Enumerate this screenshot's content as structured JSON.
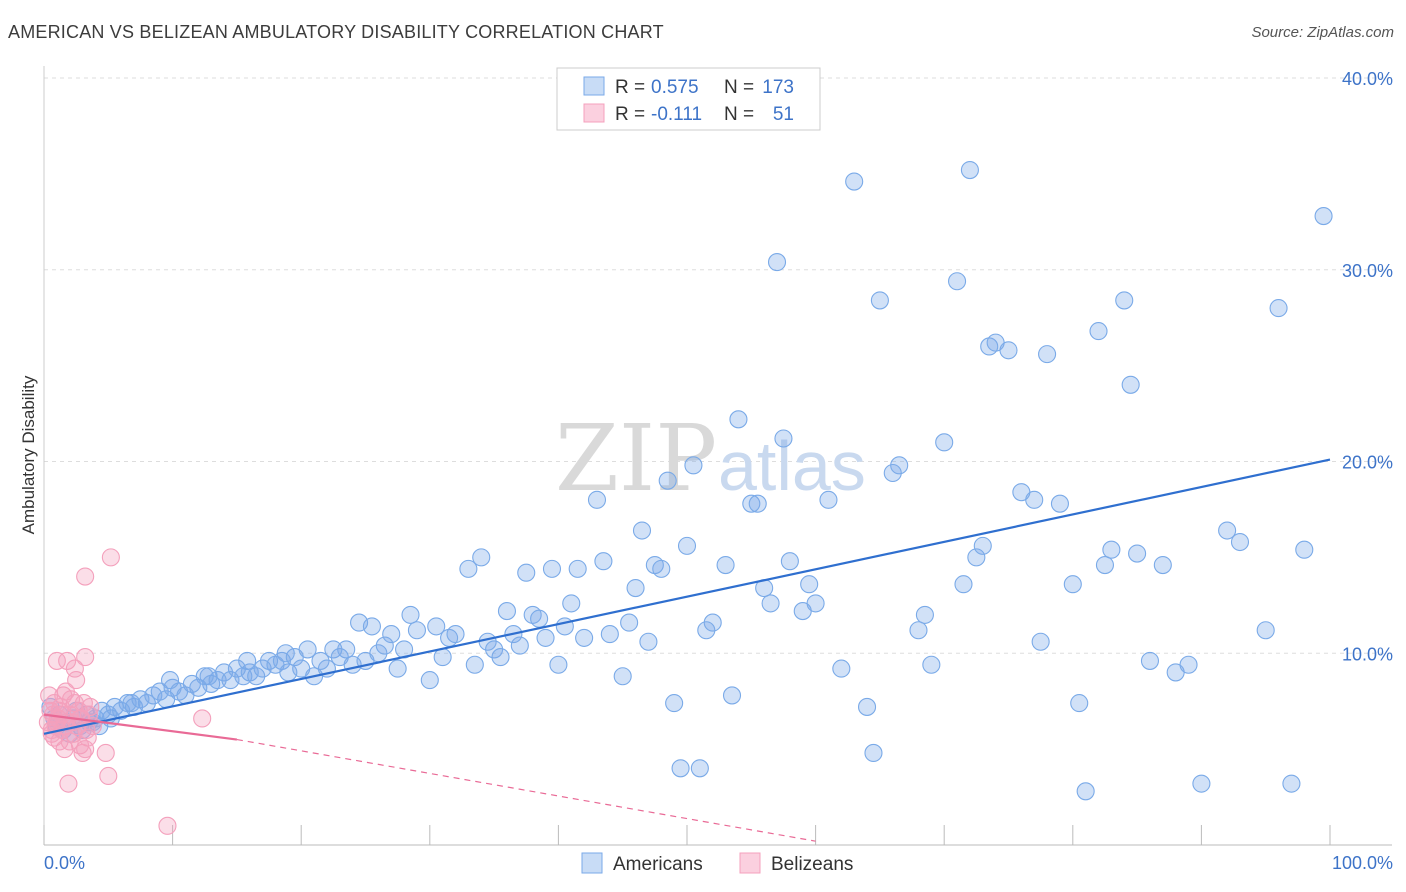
{
  "header": {
    "title": "AMERICAN VS BELIZEAN AMBULATORY DISABILITY CORRELATION CHART",
    "source": "Source: ZipAtlas.com"
  },
  "watermark": {
    "zip": "ZIP",
    "atlas": "atlas"
  },
  "legend_top": [
    {
      "r_label": "R =",
      "r_value": "0.575",
      "n_label": "N =",
      "n_value": "173",
      "color": "#7aaae8"
    },
    {
      "r_label": "R =",
      "r_value": "-0.111",
      "n_label": "N =",
      "n_value": "51",
      "color": "#f4a0bc"
    }
  ],
  "legend_bottom": [
    {
      "label": "Americans",
      "color": "#7aaae8"
    },
    {
      "label": "Belizeans",
      "color": "#f4a0bc"
    }
  ],
  "chart_data": {
    "type": "scatter",
    "title": "AMERICAN VS BELIZEAN AMBULATORY DISABILITY CORRELATION CHART",
    "xlabel": "",
    "ylabel": "Ambulatory Disability",
    "xlim": [
      0,
      100
    ],
    "ylim": [
      0,
      40
    ],
    "x_tick_labels": [
      "0.0%",
      "100.0%"
    ],
    "y_ticks": [
      10,
      20,
      30,
      40
    ],
    "y_tick_labels": [
      "10.0%",
      "20.0%",
      "30.0%",
      "40.0%"
    ],
    "grid": true,
    "legend": "top-center",
    "series": [
      {
        "name": "Americans",
        "color": "#7aaae8",
        "line_color": "#2f6fcf",
        "trend": {
          "x": [
            0,
            100
          ],
          "y": [
            5.8,
            20.1
          ],
          "style": "solid"
        },
        "points": [
          [
            0.5,
            7.2
          ],
          [
            0.8,
            6.6
          ],
          [
            1,
            6.2
          ],
          [
            1.2,
            6.8
          ],
          [
            1.5,
            6.0
          ],
          [
            1.8,
            6.4
          ],
          [
            2,
            5.8
          ],
          [
            2.3,
            6.6
          ],
          [
            2.5,
            7.0
          ],
          [
            2.8,
            6.2
          ],
          [
            3,
            6.0
          ],
          [
            3.3,
            6.8
          ],
          [
            3.5,
            6.4
          ],
          [
            4,
            6.6
          ],
          [
            4.3,
            6.2
          ],
          [
            4.5,
            7.0
          ],
          [
            5,
            6.8
          ],
          [
            5.5,
            7.2
          ],
          [
            6,
            7.0
          ],
          [
            6.5,
            7.4
          ],
          [
            7,
            7.2
          ],
          [
            7.5,
            7.6
          ],
          [
            8,
            7.4
          ],
          [
            8.5,
            7.8
          ],
          [
            9,
            8.0
          ],
          [
            9.5,
            7.6
          ],
          [
            10,
            8.2
          ],
          [
            10.5,
            8.0
          ],
          [
            11,
            7.8
          ],
          [
            11.5,
            8.4
          ],
          [
            12,
            8.2
          ],
          [
            12.5,
            8.8
          ],
          [
            13,
            8.4
          ],
          [
            13.5,
            8.6
          ],
          [
            14,
            9.0
          ],
          [
            14.5,
            8.6
          ],
          [
            15,
            9.2
          ],
          [
            15.5,
            8.8
          ],
          [
            16,
            9.0
          ],
          [
            16.5,
            8.8
          ],
          [
            17,
            9.2
          ],
          [
            17.5,
            9.6
          ],
          [
            18,
            9.4
          ],
          [
            18.5,
            9.6
          ],
          [
            19,
            9.0
          ],
          [
            19.5,
            9.8
          ],
          [
            20,
            9.2
          ],
          [
            20.5,
            10.2
          ],
          [
            21,
            8.8
          ],
          [
            21.5,
            9.6
          ],
          [
            22,
            9.2
          ],
          [
            22.5,
            10.2
          ],
          [
            23,
            9.8
          ],
          [
            23.5,
            10.2
          ],
          [
            24,
            9.4
          ],
          [
            24.5,
            11.6
          ],
          [
            25,
            9.6
          ],
          [
            25.5,
            11.4
          ],
          [
            26,
            10.0
          ],
          [
            26.5,
            10.4
          ],
          [
            27,
            11.0
          ],
          [
            27.5,
            9.2
          ],
          [
            28,
            10.2
          ],
          [
            28.5,
            12.0
          ],
          [
            29,
            11.2
          ],
          [
            30,
            8.6
          ],
          [
            30.5,
            11.4
          ],
          [
            31,
            9.8
          ],
          [
            31.5,
            10.8
          ],
          [
            32,
            11.0
          ],
          [
            33,
            14.4
          ],
          [
            33.5,
            9.4
          ],
          [
            34,
            15.0
          ],
          [
            34.5,
            10.6
          ],
          [
            35,
            10.2
          ],
          [
            35.5,
            9.8
          ],
          [
            36,
            12.2
          ],
          [
            36.5,
            11.0
          ],
          [
            37,
            10.4
          ],
          [
            37.5,
            14.2
          ],
          [
            38,
            12.0
          ],
          [
            38.5,
            11.8
          ],
          [
            39,
            10.8
          ],
          [
            39.5,
            14.4
          ],
          [
            40,
            9.4
          ],
          [
            40.5,
            11.4
          ],
          [
            41,
            12.6
          ],
          [
            41.5,
            14.4
          ],
          [
            42,
            10.8
          ],
          [
            43,
            18.0
          ],
          [
            43.5,
            14.8
          ],
          [
            44,
            11.0
          ],
          [
            45,
            8.8
          ],
          [
            45.5,
            11.6
          ],
          [
            46,
            13.4
          ],
          [
            46.5,
            16.4
          ],
          [
            47,
            10.6
          ],
          [
            47.5,
            14.6
          ],
          [
            48,
            14.4
          ],
          [
            48.5,
            19.0
          ],
          [
            49,
            7.4
          ],
          [
            49.5,
            4.0
          ],
          [
            50,
            15.6
          ],
          [
            50.5,
            19.8
          ],
          [
            51,
            4.0
          ],
          [
            51.5,
            11.2
          ],
          [
            52,
            11.6
          ],
          [
            53,
            14.6
          ],
          [
            53.5,
            7.8
          ],
          [
            54,
            22.2
          ],
          [
            55,
            17.8
          ],
          [
            55.5,
            17.8
          ],
          [
            56,
            13.4
          ],
          [
            56.5,
            12.6
          ],
          [
            57,
            30.4
          ],
          [
            57.5,
            21.2
          ],
          [
            58,
            14.8
          ],
          [
            59,
            12.2
          ],
          [
            59.5,
            13.6
          ],
          [
            60,
            12.6
          ],
          [
            61,
            18.0
          ],
          [
            62,
            9.2
          ],
          [
            63,
            34.6
          ],
          [
            64,
            7.2
          ],
          [
            64.5,
            4.8
          ],
          [
            65,
            28.4
          ],
          [
            66,
            19.4
          ],
          [
            66.5,
            19.8
          ],
          [
            68,
            11.2
          ],
          [
            68.5,
            12.0
          ],
          [
            69,
            9.4
          ],
          [
            70,
            21.0
          ],
          [
            71,
            29.4
          ],
          [
            71.5,
            13.6
          ],
          [
            72,
            35.2
          ],
          [
            72.5,
            15.0
          ],
          [
            73,
            15.6
          ],
          [
            73.5,
            26.0
          ],
          [
            74,
            26.2
          ],
          [
            75,
            25.8
          ],
          [
            76,
            18.4
          ],
          [
            77,
            18.0
          ],
          [
            77.5,
            10.6
          ],
          [
            78,
            25.6
          ],
          [
            79,
            17.8
          ],
          [
            80,
            13.6
          ],
          [
            80.5,
            7.4
          ],
          [
            81,
            2.8
          ],
          [
            82,
            26.8
          ],
          [
            82.5,
            14.6
          ],
          [
            83,
            15.4
          ],
          [
            84,
            28.4
          ],
          [
            84.5,
            24.0
          ],
          [
            85,
            15.2
          ],
          [
            86,
            9.6
          ],
          [
            87,
            14.6
          ],
          [
            88,
            9.0
          ],
          [
            89,
            9.4
          ],
          [
            90,
            3.2
          ],
          [
            92,
            16.4
          ],
          [
            93,
            15.8
          ],
          [
            95,
            11.2
          ],
          [
            96,
            28.0
          ],
          [
            97,
            3.2
          ],
          [
            98,
            15.4
          ],
          [
            99.5,
            32.8
          ],
          [
            3.8,
            6.4
          ],
          [
            5.2,
            6.6
          ],
          [
            6.8,
            7.4
          ],
          [
            9.8,
            8.6
          ],
          [
            12.8,
            8.8
          ],
          [
            15.8,
            9.6
          ],
          [
            18.8,
            10.0
          ]
        ]
      },
      {
        "name": "Belizeans",
        "color": "#f4a0bc",
        "line_color": "#e96a96",
        "trend": {
          "x": [
            0,
            15,
            60
          ],
          "y": [
            6.8,
            5.5,
            0.2
          ],
          "style": "solid-then-dashed"
        },
        "points": [
          [
            0.3,
            6.4
          ],
          [
            0.5,
            7.0
          ],
          [
            0.6,
            5.8
          ],
          [
            0.7,
            6.8
          ],
          [
            0.8,
            7.4
          ],
          [
            0.9,
            6.2
          ],
          [
            1,
            9.6
          ],
          [
            1.1,
            6.6
          ],
          [
            1.2,
            5.4
          ],
          [
            1.3,
            7.2
          ],
          [
            1.4,
            6.0
          ],
          [
            1.5,
            7.8
          ],
          [
            1.6,
            5.0
          ],
          [
            1.7,
            8.0
          ],
          [
            1.8,
            9.6
          ],
          [
            1.9,
            3.2
          ],
          [
            2,
            6.8
          ],
          [
            2.1,
            7.6
          ],
          [
            2.2,
            6.4
          ],
          [
            2.3,
            5.8
          ],
          [
            2.4,
            9.2
          ],
          [
            2.5,
            8.6
          ],
          [
            2.6,
            6.2
          ],
          [
            2.7,
            7.0
          ],
          [
            2.8,
            5.2
          ],
          [
            2.9,
            6.6
          ],
          [
            3,
            4.8
          ],
          [
            3.1,
            7.4
          ],
          [
            3.2,
            9.8
          ],
          [
            3.3,
            6.0
          ],
          [
            3.4,
            5.6
          ],
          [
            3.5,
            6.8
          ],
          [
            3.6,
            7.2
          ],
          [
            3.8,
            6.2
          ],
          [
            3.2,
            14.0
          ],
          [
            5.2,
            15.0
          ],
          [
            4.8,
            4.8
          ],
          [
            5,
            3.6
          ],
          [
            9.6,
            1.0
          ],
          [
            12.3,
            6.6
          ],
          [
            0.4,
            7.8
          ],
          [
            0.6,
            6.0
          ],
          [
            0.8,
            5.6
          ],
          [
            1.0,
            6.4
          ],
          [
            1.2,
            7.0
          ],
          [
            1.4,
            6.8
          ],
          [
            1.6,
            6.2
          ],
          [
            2.0,
            5.4
          ],
          [
            2.4,
            7.4
          ],
          [
            2.8,
            6.6
          ],
          [
            3.2,
            5.0
          ]
        ]
      }
    ]
  }
}
